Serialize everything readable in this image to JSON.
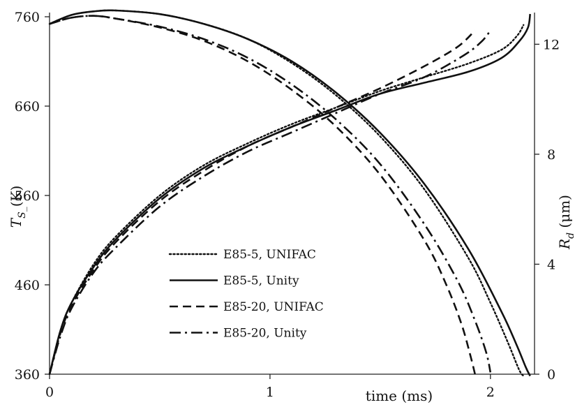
{
  "chart_data": {
    "type": "line",
    "xlabel": "time (ms)",
    "ylabel_left": "T_S_(K)",
    "ylabel_left_main": "T",
    "ylabel_left_sub": "S_",
    "ylabel_left_unit": "(K)",
    "ylabel_right_main": "R",
    "ylabel_right_sub": "d",
    "ylabel_right_unit": " (μm)",
    "xlim": [
      0,
      2.2
    ],
    "ylim_left": [
      360,
      760
    ],
    "ylim_right": [
      0,
      13
    ],
    "xticks": [
      "0",
      "1",
      "2"
    ],
    "yticks_left": [
      "360",
      "460",
      "560",
      "660",
      "760"
    ],
    "yticks_right": [
      "0",
      "4",
      "8",
      "12"
    ],
    "grid": false,
    "legend_placement": "lower-left",
    "series": [
      {
        "name": "E85-5, UNIFAC",
        "dash": "dotted",
        "temperature": {
          "x": [
            0,
            0.1,
            0.2,
            0.3,
            0.5,
            0.7,
            0.9,
            1.1,
            1.3,
            1.5,
            1.7,
            1.9,
            2.0,
            2.08,
            2.13,
            2.15
          ],
          "y": [
            752,
            762,
            766,
            767,
            763,
            752,
            735,
            708,
            672,
            626,
            567,
            490,
            440,
            395,
            365,
            358
          ]
        },
        "radius": {
          "x": [
            0,
            0.05,
            0.1,
            0.2,
            0.3,
            0.5,
            0.7,
            0.9,
            1.1,
            1.3,
            1.5,
            1.7,
            1.9,
            2.05,
            2.12,
            2.15
          ],
          "y": [
            0,
            1.6,
            2.6,
            4.0,
            5.0,
            6.5,
            7.6,
            8.4,
            9.1,
            9.7,
            10.3,
            10.8,
            11.3,
            11.8,
            12.3,
            12.7
          ]
        }
      },
      {
        "name": "E85-5, Unity",
        "dash": "solid",
        "temperature": {
          "x": [
            0,
            0.1,
            0.2,
            0.3,
            0.5,
            0.7,
            0.9,
            1.1,
            1.3,
            1.5,
            1.7,
            1.9,
            2.05,
            2.12,
            2.16,
            2.18
          ],
          "y": [
            752,
            762,
            766,
            767,
            763,
            752,
            735,
            710,
            675,
            630,
            573,
            500,
            430,
            392,
            368,
            358
          ]
        },
        "radius": {
          "x": [
            0,
            0.05,
            0.1,
            0.2,
            0.3,
            0.5,
            0.7,
            0.9,
            1.1,
            1.3,
            1.5,
            1.7,
            1.9,
            2.05,
            2.13,
            2.17,
            2.18
          ],
          "y": [
            0,
            1.6,
            2.6,
            3.9,
            4.9,
            6.4,
            7.5,
            8.3,
            9.0,
            9.6,
            10.2,
            10.6,
            11.0,
            11.5,
            12.1,
            12.6,
            13.1
          ]
        }
      },
      {
        "name": "E85-20, UNIFAC",
        "dash": "dashed",
        "temperature": {
          "x": [
            0,
            0.1,
            0.2,
            0.3,
            0.5,
            0.7,
            0.9,
            1.1,
            1.3,
            1.5,
            1.7,
            1.8,
            1.87,
            1.91,
            1.93
          ],
          "y": [
            752,
            759,
            761,
            758,
            748,
            733,
            710,
            678,
            637,
            583,
            510,
            460,
            415,
            380,
            360
          ]
        },
        "radius": {
          "x": [
            0,
            0.05,
            0.1,
            0.2,
            0.3,
            0.5,
            0.7,
            0.9,
            1.1,
            1.3,
            1.5,
            1.7,
            1.85,
            1.93
          ],
          "y": [
            0,
            1.5,
            2.5,
            3.8,
            4.8,
            6.3,
            7.4,
            8.3,
            9.0,
            9.7,
            10.4,
            11.2,
            11.9,
            12.5
          ]
        }
      },
      {
        "name": "E85-20, Unity",
        "dash": "dashdot",
        "temperature": {
          "x": [
            0,
            0.1,
            0.2,
            0.3,
            0.5,
            0.7,
            0.9,
            1.1,
            1.3,
            1.5,
            1.7,
            1.85,
            1.93,
            1.98,
            2.0
          ],
          "y": [
            752,
            759,
            761,
            758,
            749,
            735,
            714,
            684,
            645,
            595,
            528,
            465,
            420,
            385,
            362
          ]
        },
        "radius": {
          "x": [
            0,
            0.05,
            0.1,
            0.2,
            0.3,
            0.5,
            0.7,
            0.9,
            1.1,
            1.3,
            1.5,
            1.7,
            1.88,
            1.96,
            2.0
          ],
          "y": [
            0,
            1.4,
            2.4,
            3.7,
            4.6,
            6.1,
            7.2,
            8.1,
            8.8,
            9.5,
            10.2,
            10.8,
            11.6,
            12.1,
            12.5
          ]
        }
      }
    ]
  }
}
